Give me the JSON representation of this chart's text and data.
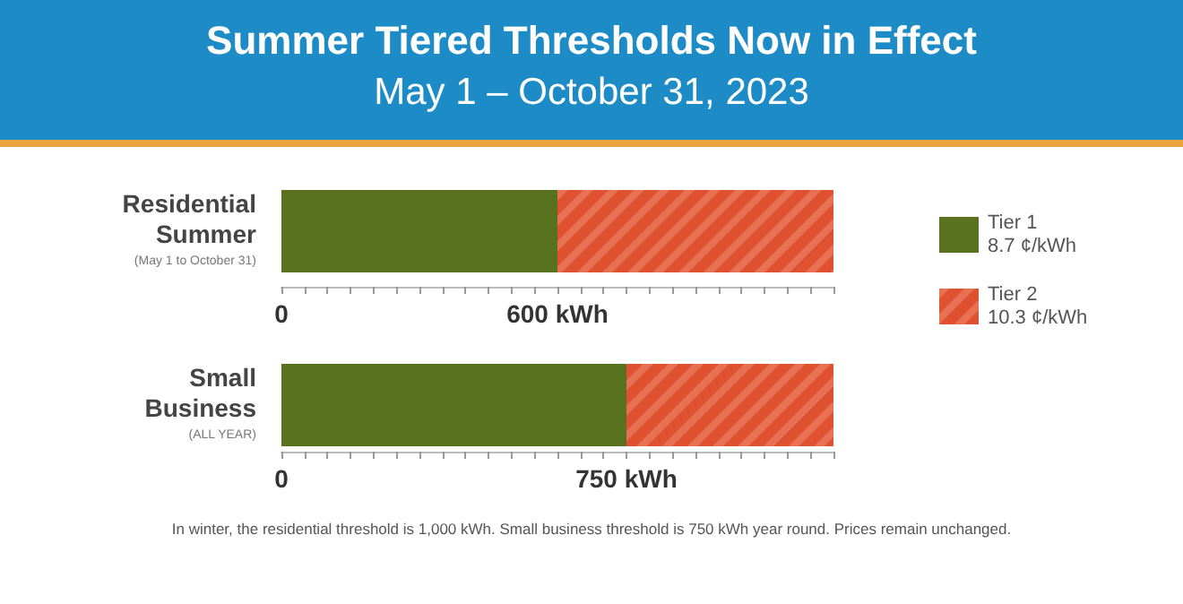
{
  "chart_data": [
    {
      "type": "bar",
      "title": "Summer Tiered Thresholds Now in Effect",
      "subtitle": "May 1 – October 31, 2023",
      "orientation": "horizontal",
      "stacked": true,
      "legend": "right",
      "categories": [
        "Residential\nSummer\n(May 1 to October 31)"
      ],
      "series": [
        {
          "name": "Tier 1\n8.7 ¢/kWh",
          "color": "#58721f",
          "values": [
            600
          ]
        },
        {
          "name": "Tier 2\n10.3 ¢/kWh",
          "color": "#e0522f",
          "values": [
            600
          ]
        }
      ],
      "xlim": [
        0,
        1200
      ],
      "xticks": [
        0,
        {
          "value": 50,
          "label": null
        },
        {
          "value": 100,
          "label": null
        },
        {
          "value": 150,
          "label": null
        },
        {
          "value": 200,
          "label": null
        },
        {
          "value": 250,
          "label": null
        },
        {
          "value": 300,
          "label": null
        },
        {
          "value": 350,
          "label": null
        },
        {
          "value": 400,
          "label": null
        },
        {
          "value": 450,
          "label": null
        },
        {
          "value": 500,
          "label": null
        },
        {
          "value": 550,
          "label": null
        },
        {
          "value": 600,
          "label": "600 kWh"
        },
        {
          "value": 650,
          "label": null
        },
        {
          "value": 700,
          "label": null
        },
        {
          "value": 750,
          "label": null
        },
        {
          "value": 800,
          "label": null
        },
        {
          "value": 850,
          "label": null
        },
        {
          "value": 900,
          "label": null
        },
        {
          "value": 950,
          "label": null
        },
        {
          "value": 1000,
          "label": null
        },
        {
          "value": 1050,
          "label": null
        },
        {
          "value": 1100,
          "label": null
        },
        {
          "value": 1150,
          "label": null
        },
        {
          "value": 1200,
          "label": null
        }
      ],
      "grid": false
    },
    {
      "type": "bar",
      "orientation": "horizontal",
      "stacked": true,
      "categories": [
        "Small\nBusiness\n(ALL YEAR)"
      ],
      "series": [
        {
          "color": "#58721f",
          "values": [
            750
          ]
        },
        {
          "color": "#e0522f",
          "values": [
            450
          ]
        }
      ],
      "xlim": [
        0,
        1200
      ],
      "xticks": [
        0,
        {
          "value": 50,
          "label": null
        },
        {
          "value": 100,
          "label": null
        },
        {
          "value": 150,
          "label": null
        },
        {
          "value": 200,
          "label": null
        },
        {
          "value": 250,
          "label": null
        },
        {
          "value": 300,
          "label": null
        },
        {
          "value": 350,
          "label": null
        },
        {
          "value": 400,
          "label": null
        },
        {
          "value": 450,
          "label": null
        },
        {
          "value": 500,
          "label": null
        },
        {
          "value": 550,
          "label": null
        },
        {
          "value": 600,
          "label": null
        },
        {
          "value": 650,
          "label": null
        },
        {
          "value": 700,
          "label": null
        },
        {
          "value": 750,
          "label": "750 kWh"
        },
        {
          "value": 800,
          "label": null
        },
        {
          "value": 850,
          "label": null
        },
        {
          "value": 900,
          "label": null
        },
        {
          "value": 950,
          "label": null
        },
        {
          "value": 1000,
          "label": null
        },
        {
          "value": 1050,
          "label": null
        },
        {
          "value": 1100,
          "label": null
        },
        {
          "value": 1150,
          "label": null
        },
        {
          "value": 1200,
          "label": null
        }
      ],
      "grid": false,
      "annotations": [
        "In winter, the residential threshold is 1,000 kWh. Small business threshold is 750 kWh year round. Prices remain unchanged."
      ]
    }
  ]
}
